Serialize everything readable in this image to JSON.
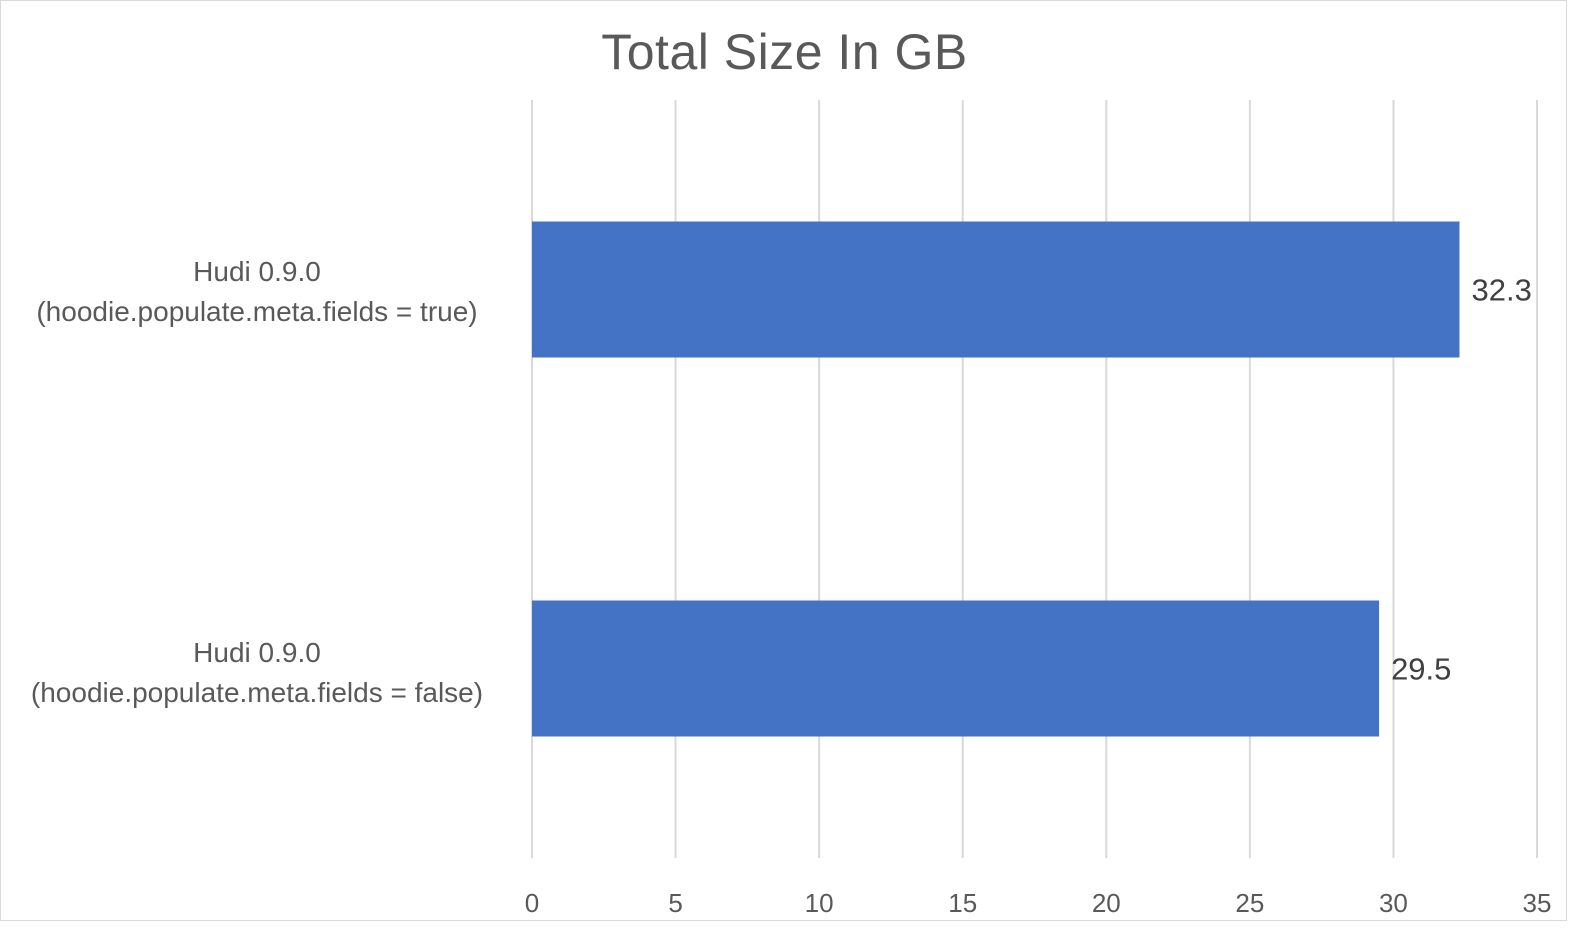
{
  "chart_data": {
    "type": "bar",
    "orientation": "horizontal",
    "title": "Total Size In GB",
    "categories": [
      {
        "line1": "Hudi 0.9.0",
        "line2": "(hoodie.populate.meta.fields = true)"
      },
      {
        "line1": "Hudi 0.9.0",
        "line2": "(hoodie.populate.meta.fields = false)"
      }
    ],
    "values": [
      32.3,
      29.5
    ],
    "data_labels": [
      "32.3",
      "29.5"
    ],
    "xlim": [
      0,
      35
    ],
    "xticks": [
      "0",
      "5",
      "10",
      "15",
      "20",
      "25",
      "30",
      "35"
    ],
    "grid": true,
    "legend": "none",
    "bar_color": "#4472C4",
    "grid_color": "#d9d9d9",
    "text_color": "#595959",
    "label_color": "#404040"
  }
}
